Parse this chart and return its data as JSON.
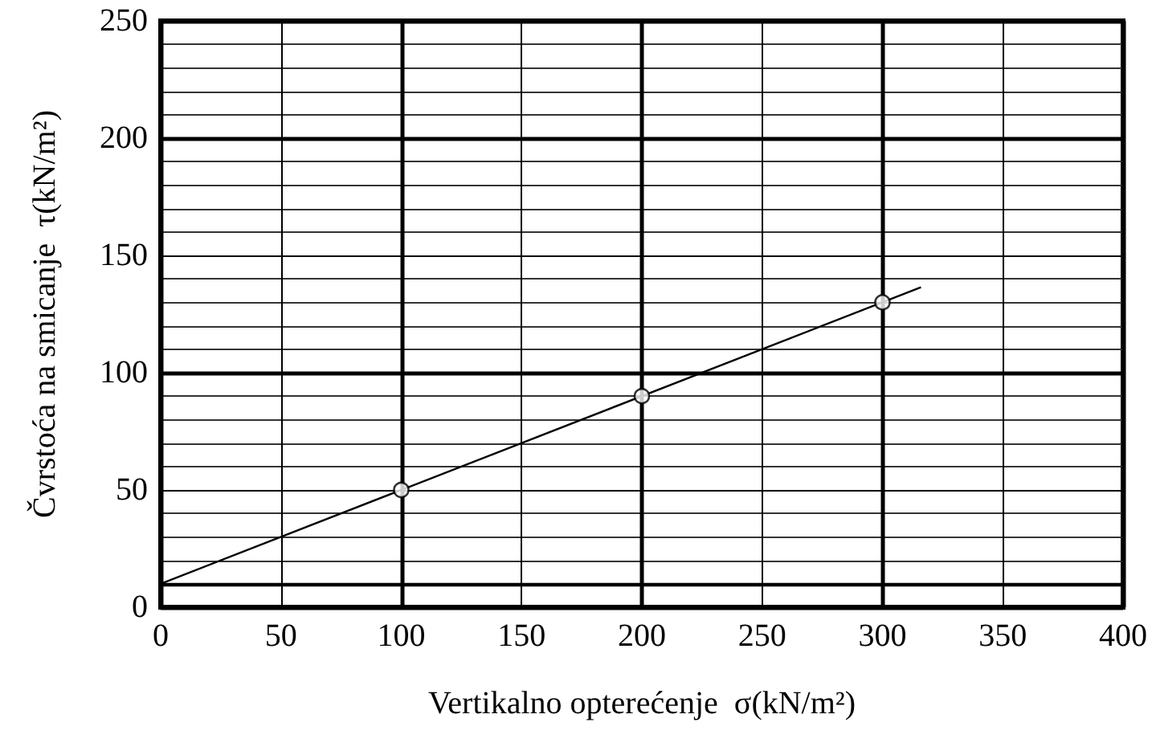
{
  "chart_data": {
    "type": "scatter",
    "xlabel": "Vertikalno opterećenje  σ(kN/m²)",
    "ylabel": "Čvrstoća na smicanje  τ(kN/m²)",
    "series": [
      {
        "type": "line",
        "color": "#000000",
        "x": [
          0,
          316
        ],
        "values": [
          10,
          136.4
        ],
        "marker": "none"
      },
      {
        "type": "scatter",
        "color": "#000000",
        "x": [
          100,
          200,
          300
        ],
        "values": [
          50,
          90,
          130
        ],
        "marker": "circle"
      }
    ],
    "xlim": [
      0,
      400
    ],
    "xticks": [
      0,
      50,
      100,
      150,
      200,
      250,
      300,
      350,
      400
    ],
    "ylim": [
      0,
      250
    ],
    "yticks": [
      0,
      50,
      100,
      150,
      200,
      250
    ],
    "ref_lines": [
      {
        "axis": "y",
        "value": 10,
        "label": null,
        "color": "#000000"
      }
    ],
    "grid": true
  }
}
